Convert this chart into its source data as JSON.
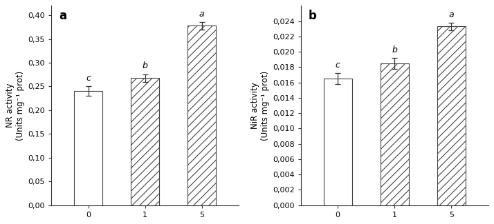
{
  "panel_a": {
    "label": "a",
    "categories": [
      "0",
      "1",
      "5"
    ],
    "values": [
      0.24,
      0.268,
      0.378
    ],
    "errors": [
      0.01,
      0.008,
      0.008
    ],
    "sig_labels": [
      "c",
      "b",
      "a"
    ],
    "ylabel": "NR activity\n(Units mg⁻¹ prot)",
    "ylim": [
      0.0,
      0.42
    ],
    "yticks": [
      0.0,
      0.05,
      0.1,
      0.15,
      0.2,
      0.25,
      0.3,
      0.35,
      0.4
    ],
    "ytick_labels": [
      "0,00",
      "0,05",
      "0,10",
      "0,15",
      "0,20",
      "0,25",
      "0,30",
      "0,35",
      "0,40"
    ],
    "bar_patterns": [
      "",
      "///",
      "///"
    ],
    "bar_colors": [
      "white",
      "white",
      "white"
    ],
    "bar_edge_colors": [
      "#444444",
      "#444444",
      "#444444"
    ]
  },
  "panel_b": {
    "label": "b",
    "categories": [
      "0",
      "1",
      "5"
    ],
    "values": [
      0.0165,
      0.0185,
      0.0233
    ],
    "errors": [
      0.0007,
      0.0007,
      0.0005
    ],
    "sig_labels": [
      "c",
      "b",
      "a"
    ],
    "ylabel": "NiR activity\n(Units mg⁻¹ prot)",
    "ylim": [
      0.0,
      0.026
    ],
    "yticks": [
      0.0,
      0.002,
      0.004,
      0.006,
      0.008,
      0.01,
      0.012,
      0.014,
      0.016,
      0.018,
      0.02,
      0.022,
      0.024
    ],
    "ytick_labels": [
      "0,000",
      "0,002",
      "0,004",
      "0,006",
      "0,008",
      "0,010",
      "0,012",
      "0,014",
      "0,016",
      "0,018",
      "0,020",
      "0,022",
      "0,024"
    ],
    "bar_patterns": [
      "",
      "///",
      "///"
    ],
    "bar_colors": [
      "white",
      "white",
      "white"
    ],
    "bar_edge_colors": [
      "#444444",
      "#444444",
      "#444444"
    ]
  },
  "figure_bg": "#ffffff",
  "axes_bg": "#ffffff",
  "hatch_color": "#b0b0b0",
  "hatch_linewidth": 0.8,
  "bar_width": 0.5,
  "fontsize_label": 8.5,
  "fontsize_tick": 8,
  "fontsize_sig": 9,
  "fontsize_panel": 12
}
